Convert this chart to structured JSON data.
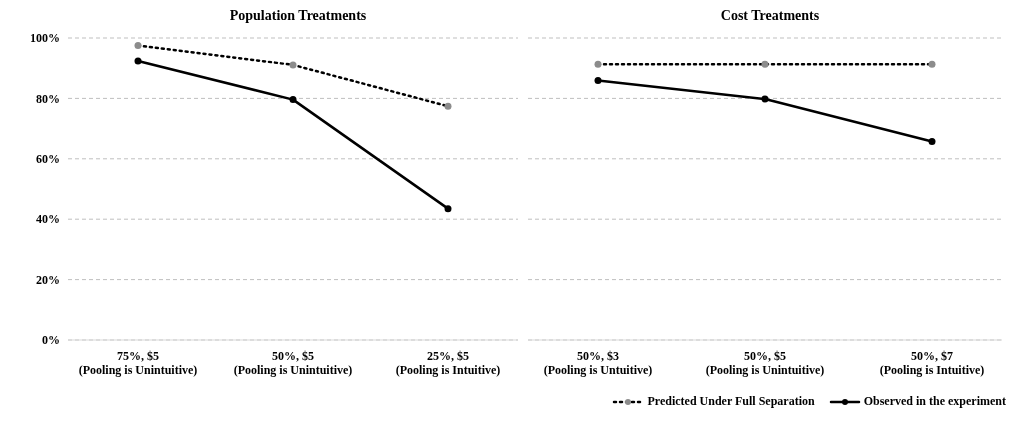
{
  "chart_data": [
    {
      "type": "line",
      "title": "Population Treatments",
      "categories": [
        "75%, $5\n(Pooling is Unintuitive)",
        "50%, $5\n(Pooling is Unintuitive)",
        "25%, $5\n(Pooling is Intuitive)"
      ],
      "series": [
        {
          "color": "#000000",
          "line_style": "dotted",
          "values": [
            97.5,
            91.1,
            77.4
          ]
        },
        {
          "color": "#000000",
          "line_style": "solid",
          "values": [
            92.4,
            79.6,
            43.5
          ]
        }
      ],
      "ylim": [
        0,
        100
      ],
      "yticks": [
        {
          "value": 0,
          "label": "0%"
        },
        {
          "value": 20,
          "label": "20%"
        },
        {
          "value": 40,
          "label": "40%"
        },
        {
          "value": 60,
          "label": "60%"
        },
        {
          "value": 80,
          "label": "80%"
        },
        {
          "value": 100,
          "label": "100%"
        }
      ],
      "grid": "y",
      "marker": "circle",
      "legend": false
    },
    {
      "type": "line",
      "title": "Cost Treatments",
      "categories": [
        "50%, $3\n(Pooling is Untuitive)",
        "50%, $5\n(Pooling is Unintuitive)",
        "50%, $7\n(Pooling is Intuitive)"
      ],
      "series": [
        {
          "name": "Predicted Under Full Separation",
          "color": "#000000",
          "line_style": "dotted",
          "values": [
            91.3,
            91.3,
            91.3
          ]
        },
        {
          "name": "Observed in the experiment",
          "color": "#000000",
          "line_style": "solid",
          "values": [
            85.9,
            79.8,
            65.7
          ]
        }
      ],
      "ylim": [
        0,
        100
      ],
      "yticks": [
        0,
        20,
        40,
        60,
        80,
        100
      ],
      "grid": "y",
      "marker": "circle",
      "legend": "bottom right",
      "tick_labels": "x"
    }
  ]
}
